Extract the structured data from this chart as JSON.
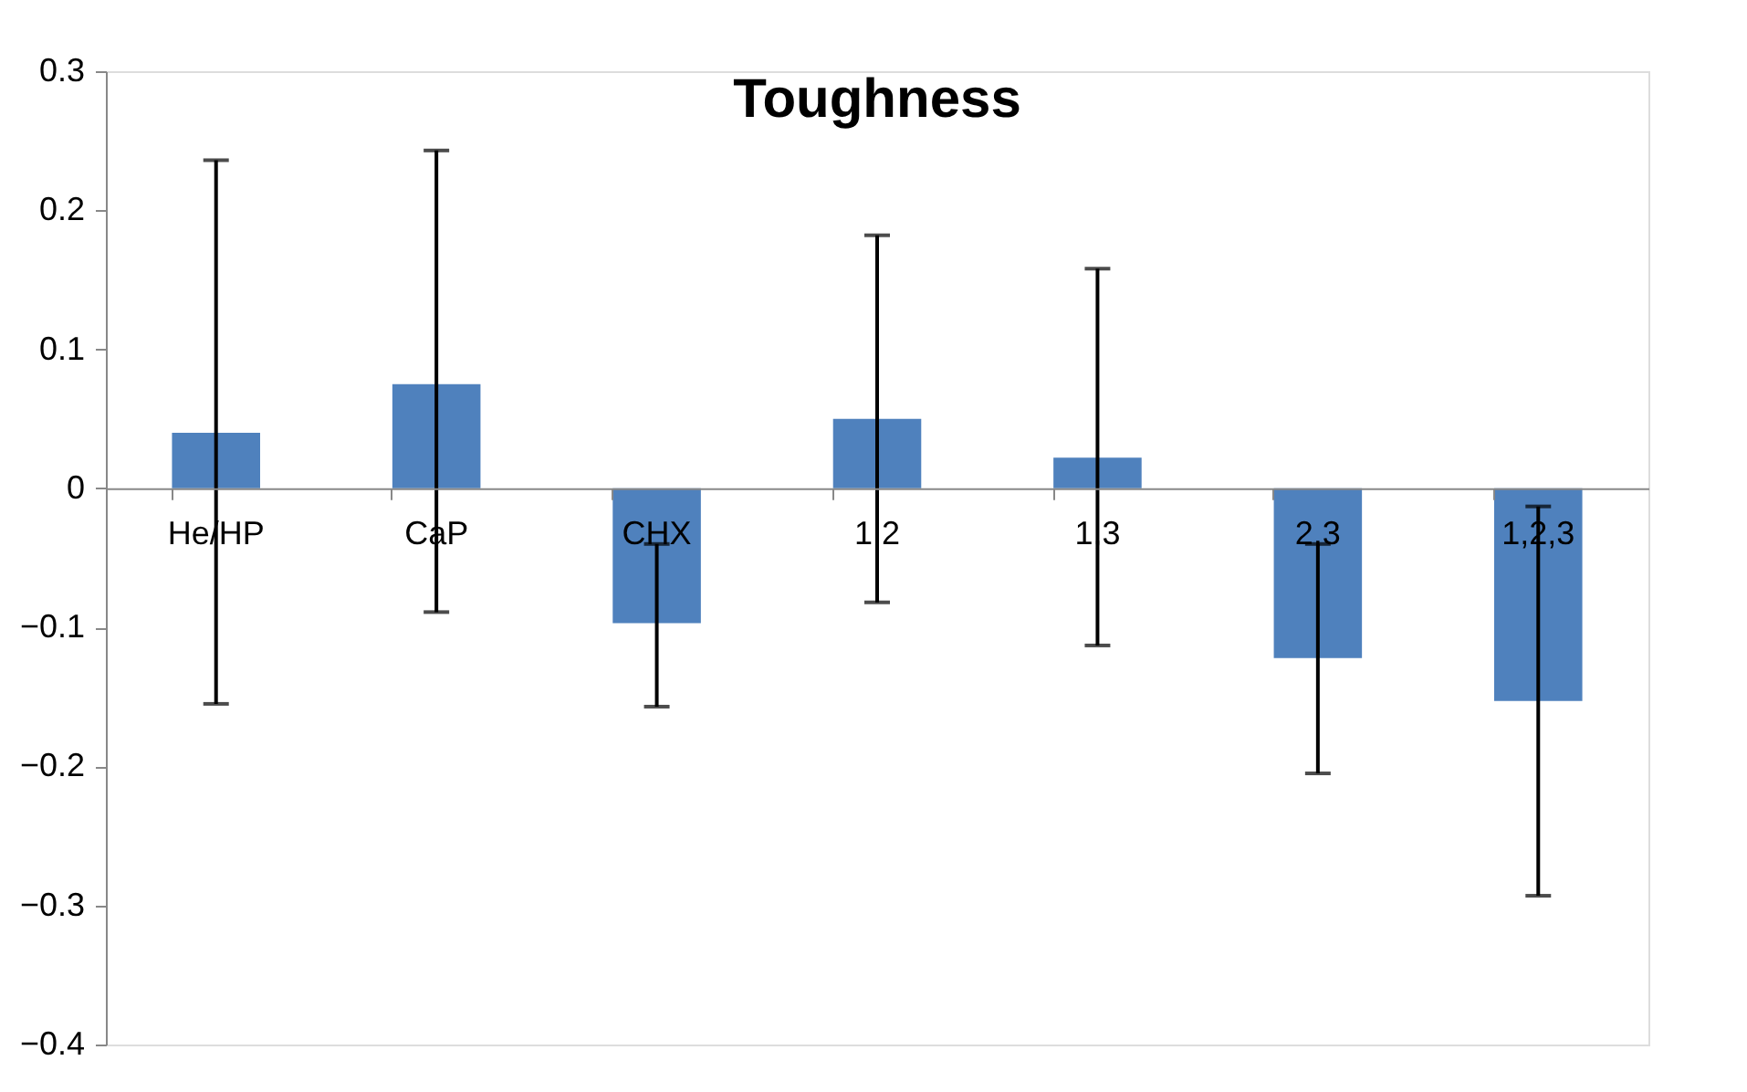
{
  "chart_data": {
    "type": "bar",
    "title": "Toughness",
    "categories": [
      "He/HP",
      "CaP",
      "CHX",
      "1,2",
      "1,3",
      "2,3",
      "1,2,3"
    ],
    "values": [
      0.04,
      0.075,
      -0.097,
      0.05,
      0.022,
      -0.122,
      -0.153
    ],
    "errors": [
      [
        -0.155,
        0.236
      ],
      [
        -0.089,
        0.243
      ],
      [
        -0.157,
        -0.04
      ],
      [
        -0.082,
        0.182
      ],
      [
        -0.113,
        0.158
      ],
      [
        -0.205,
        -0.04
      ],
      [
        -0.293,
        -0.013
      ]
    ],
    "color": "#4f81bd",
    "ylim": [
      -0.4,
      0.3
    ],
    "yticks": [
      -0.4,
      -0.3,
      -0.2,
      -0.1,
      0,
      0.1,
      0.2,
      0.3
    ],
    "grid": false
  }
}
